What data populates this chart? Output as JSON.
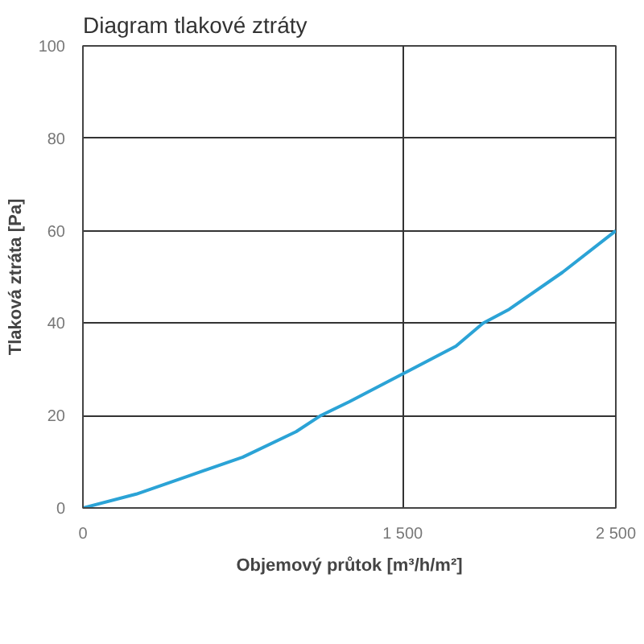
{
  "chart_data": {
    "type": "line",
    "title": "Diagram tlakové ztráty",
    "xlabel": "Objemový průtok [m³/h/m²]",
    "ylabel": "Tlaková ztráta [Pa]",
    "x": [
      0,
      250,
      500,
      750,
      1000,
      1116,
      1250,
      1500,
      1750,
      1877,
      2000,
      2250,
      2500
    ],
    "series": [
      {
        "color": "#2ba3d6",
        "values": [
          0,
          3,
          7,
          11,
          16.5,
          20,
          23,
          29,
          35,
          40,
          43,
          51,
          60
        ]
      }
    ],
    "xlim": [
      0,
      2500
    ],
    "ylim": [
      0,
      100
    ],
    "xticks": [
      0,
      {
        "value": 1500,
        "label": "1 500"
      },
      {
        "value": 2500,
        "label": "2 500"
      }
    ],
    "yticks": [
      0,
      20,
      40,
      60,
      80,
      100
    ],
    "grid": true,
    "marker": "none",
    "line_style": "solid"
  }
}
